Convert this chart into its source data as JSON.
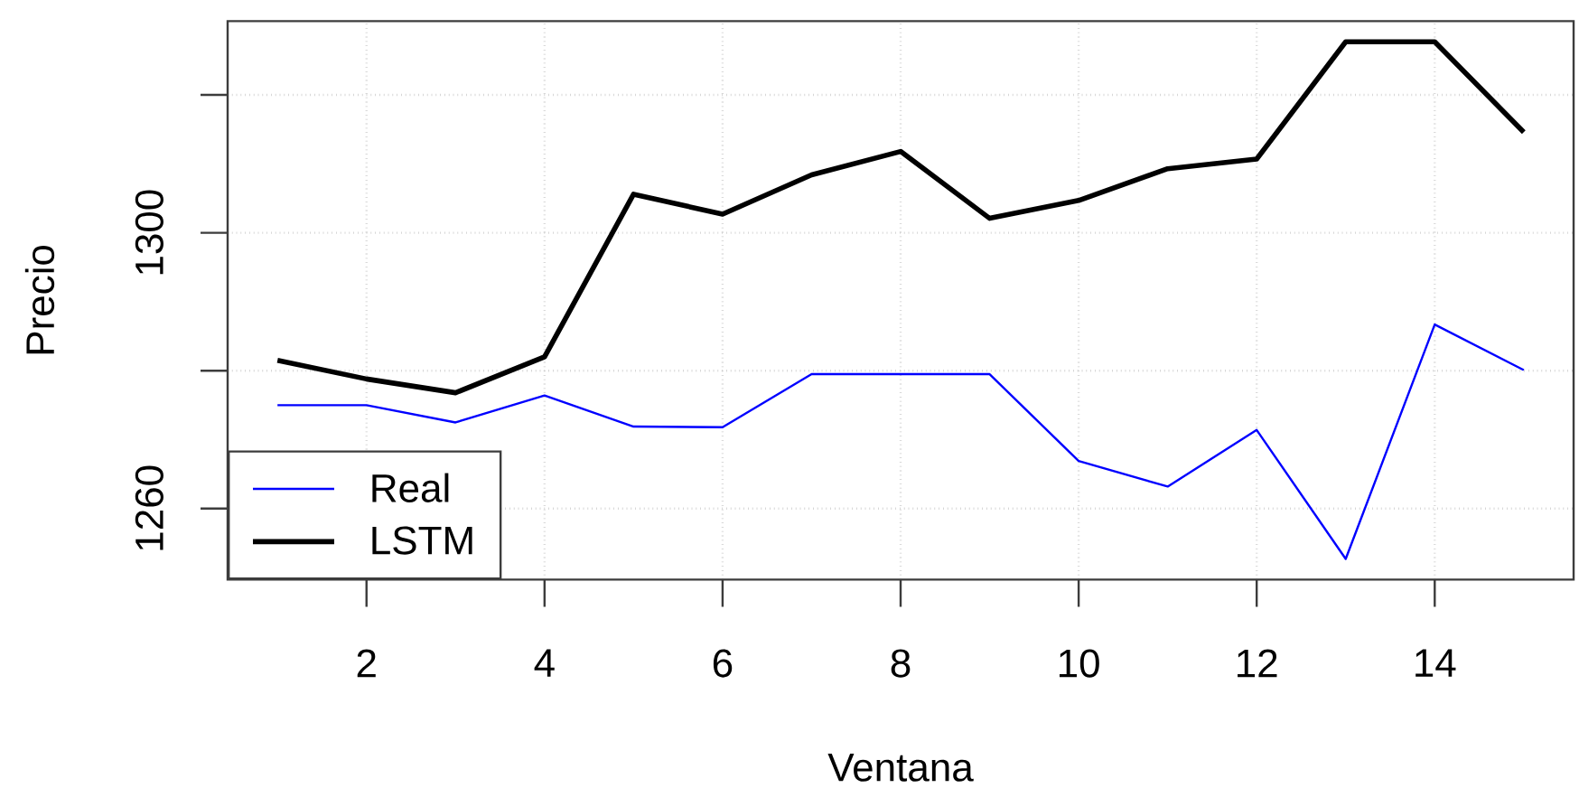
{
  "chart_data": {
    "type": "line",
    "xlabel": "Ventana",
    "ylabel": "Precio",
    "x": [
      1,
      2,
      3,
      4,
      5,
      6,
      7,
      8,
      9,
      10,
      11,
      12,
      13,
      14,
      15
    ],
    "series": [
      {
        "name": "Real",
        "color": "#0000ff",
        "values": [
          1275.0,
          1275.0,
          1272.5,
          1276.4,
          1271.9,
          1271.8,
          1279.5,
          1279.5,
          1279.5,
          1266.9,
          1263.2,
          1271.4,
          1252.7,
          1286.7,
          1280.1
        ]
      },
      {
        "name": "LSTM",
        "color": "#000000",
        "values": [
          1281.5,
          1278.8,
          1276.8,
          1282.0,
          1305.6,
          1302.7,
          1308.4,
          1311.8,
          1302.1,
          1304.7,
          1309.3,
          1310.7,
          1327.7,
          1327.7,
          1314.6
        ]
      }
    ],
    "xlim": [
      0.44,
      15.56
    ],
    "ylim": [
      1249.7,
      1330.7
    ],
    "xticks": [
      2,
      4,
      6,
      8,
      10,
      12,
      14
    ],
    "yticks": [
      1260,
      {
        "value": 1280,
        "label": null
      },
      1300,
      {
        "value": 1320,
        "label": null
      }
    ],
    "grid": true,
    "legend": "bottom left",
    "marker": "none",
    "line_style": "solid"
  }
}
